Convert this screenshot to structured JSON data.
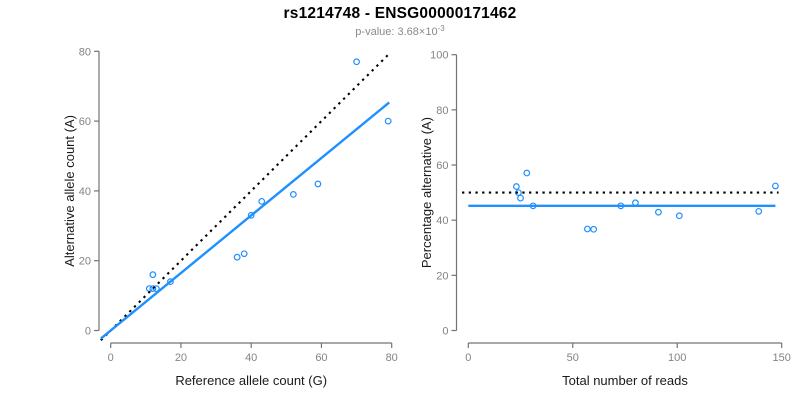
{
  "chart_data": {
    "title": "rs1214748 - ENSG00000171462",
    "subtitle_prefix": "p-value: 3.68×10",
    "subtitle_exponent": "-3",
    "colors": {
      "accent_blue": "#1E90FF",
      "dotted_black": "#000000",
      "axis_gray": "#737373",
      "tick_label_gray": "#838383"
    },
    "panels": [
      {
        "type": "scatter",
        "name": "allele-counts-panel",
        "xlabel": "Reference allele count (G)",
        "ylabel": "Alternative allele count (A)",
        "xlim": [
          0,
          80
        ],
        "ylim": [
          0,
          80
        ],
        "xticks": [
          0,
          20,
          40,
          60,
          80
        ],
        "yticks": [
          0,
          20,
          40,
          60,
          80
        ],
        "grid": false,
        "point_color": "#1E90FF",
        "points": [
          {
            "x": 11,
            "y": 12
          },
          {
            "x": 12,
            "y": 12
          },
          {
            "x": 13,
            "y": 12
          },
          {
            "x": 12,
            "y": 16
          },
          {
            "x": 17,
            "y": 14
          },
          {
            "x": 36,
            "y": 21
          },
          {
            "x": 38,
            "y": 22
          },
          {
            "x": 40,
            "y": 33
          },
          {
            "x": 43,
            "y": 37
          },
          {
            "x": 52,
            "y": 39
          },
          {
            "x": 59,
            "y": 42
          },
          {
            "x": 70,
            "y": 77
          },
          {
            "x": 79,
            "y": 60
          }
        ],
        "lines": [
          {
            "name": "identity-line",
            "kind": "abline",
            "slope": 1,
            "intercept": 0,
            "x_range": [
              -2.8,
              79.3
            ],
            "style": "dotted",
            "color": "#000000"
          },
          {
            "name": "regression-line",
            "kind": "abline",
            "slope": 0.824,
            "intercept": 0,
            "x_range": [
              -2.8,
              79.3
            ],
            "style": "solid",
            "color": "#1E90FF"
          }
        ]
      },
      {
        "type": "scatter",
        "name": "percentage-panel",
        "xlabel": "Total number of reads",
        "ylabel": "Percentage alternative (A)",
        "xlim": [
          0,
          150
        ],
        "ylim": [
          0,
          100
        ],
        "xticks": [
          0,
          50,
          100,
          150
        ],
        "yticks": [
          0,
          20,
          40,
          60,
          80,
          100
        ],
        "grid": false,
        "point_color": "#1E90FF",
        "points": [
          {
            "x": 23,
            "y": 52.2
          },
          {
            "x": 24,
            "y": 50.0
          },
          {
            "x": 25,
            "y": 48.0
          },
          {
            "x": 28,
            "y": 57.1
          },
          {
            "x": 31,
            "y": 45.2
          },
          {
            "x": 57,
            "y": 36.8
          },
          {
            "x": 60,
            "y": 36.7
          },
          {
            "x": 73,
            "y": 45.2
          },
          {
            "x": 80,
            "y": 46.3
          },
          {
            "x": 91,
            "y": 42.9
          },
          {
            "x": 101,
            "y": 41.6
          },
          {
            "x": 139,
            "y": 43.2
          },
          {
            "x": 147,
            "y": 52.4
          }
        ],
        "lines": [
          {
            "name": "expected-percentage-line",
            "kind": "hline",
            "y": 50,
            "x_range": [
              -3,
              148.5
            ],
            "style": "dotted",
            "color": "#000000"
          },
          {
            "name": "mean-percentage-line",
            "kind": "hline",
            "y": 45.2,
            "x_range": [
              0,
              147
            ],
            "style": "solid",
            "color": "#1E90FF"
          }
        ]
      }
    ]
  }
}
